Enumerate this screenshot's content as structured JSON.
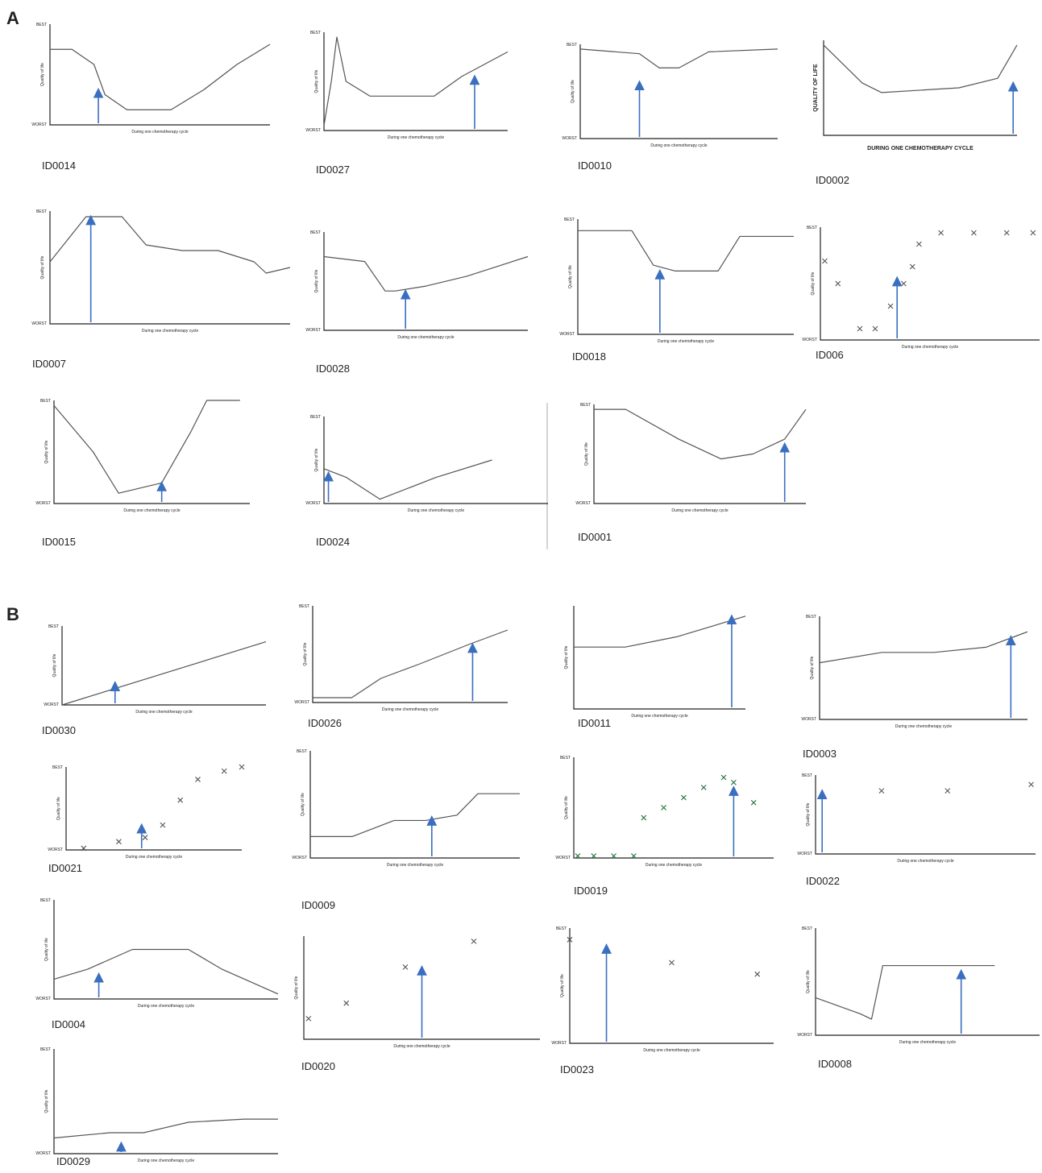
{
  "panels": [
    {
      "letter": "A",
      "sketches": [
        {
          "id": "ID0014",
          "y_label": "Quality of life",
          "x_label": "During one chemotherapy cycle",
          "best": "BEST",
          "worst": "WORST"
        },
        {
          "id": "ID0027",
          "y_label": "Quality of life",
          "x_label": "During one chemotherapy cycle",
          "best": "BEST",
          "worst": "WORST"
        },
        {
          "id": "ID0010",
          "y_label": "Quality of life",
          "x_label": "During one chemotherapy cycle",
          "best": "BEST",
          "worst": "WORST"
        },
        {
          "id": "ID0002",
          "y_label": "QUALITY OF LIFE",
          "x_label": "DURING ONE CHEMOTHERAPY CYCLE"
        },
        {
          "id": "ID0007",
          "y_label": "Quality of life",
          "x_label": "During one chemotherapy cycle",
          "best": "BEST",
          "worst": "WORST"
        },
        {
          "id": "ID0028",
          "y_label": "Quality of life",
          "x_label": "During one chemotherapy cycle",
          "best": "BEST",
          "worst": "WORST"
        },
        {
          "id": "ID0018",
          "y_label": "Quality of life",
          "x_label": "During one chemotherapy cycle",
          "best": "BEST",
          "worst": "WORST"
        },
        {
          "id": "ID006",
          "y_label": "Quality of life",
          "x_label": "During one chemotherapy cycle",
          "best": "BEST",
          "worst": "WORST"
        },
        {
          "id": "ID0015",
          "y_label": "Quality of life",
          "x_label": "During one chemotherapy cycle",
          "best": "BEST",
          "worst": "WORST"
        },
        {
          "id": "ID0024",
          "y_label": "Quality of life",
          "x_label": "During one chemotherapy cycle",
          "best": "BEST",
          "worst": "WORST"
        },
        {
          "id": "ID0001",
          "y_label": "Quality of life",
          "x_label": "During one chemotherapy cycle",
          "best": "BEST",
          "worst": "WORST"
        }
      ]
    },
    {
      "letter": "B",
      "sketches": [
        {
          "id": "ID0030",
          "y_label": "Quality of life",
          "x_label": "During one chemotherapy cycle",
          "best": "BEST",
          "worst": "WORST"
        },
        {
          "id": "ID0026",
          "y_label": "Quality of life",
          "x_label": "During one chemotherapy cycle",
          "best": "BEST",
          "worst": "WORST"
        },
        {
          "id": "ID0011",
          "y_label": "Quality of life",
          "x_label": "During one chemotherapy cycle"
        },
        {
          "id": "ID0003",
          "y_label": "Quality of life",
          "x_label": "During one chemotherapy cycle",
          "best": "BEST",
          "worst": "WORST"
        },
        {
          "id": "ID0021",
          "y_label": "Quality of life",
          "x_label": "During one chemotherapy cycle",
          "best": "BEST",
          "worst": "WORST"
        },
        {
          "id": "ID0009",
          "y_label": "Quality of life",
          "x_label": "During one chemotherapy cycle",
          "best": "BEST",
          "worst": "WORST"
        },
        {
          "id": "ID0019",
          "y_label": "Quality of life",
          "x_label": "During one chemotherapy cycle",
          "best": "BEST",
          "worst": "WORST"
        },
        {
          "id": "ID0022",
          "y_label": "Quality of life",
          "x_label": "During one chemotherapy cycle",
          "best": "BEST",
          "worst": "WORST"
        },
        {
          "id": "ID0004",
          "y_label": "Quality of life",
          "x_label": "During one chemotherapy cycle",
          "best": "BEST",
          "worst": "WORST"
        },
        {
          "id": "ID0020",
          "y_label": "Quality of life",
          "x_label": "During one chemotherapy cycle"
        },
        {
          "id": "ID0023",
          "y_label": "Quality of life",
          "x_label": "During one chemotherapy cycle",
          "best": "BEST",
          "worst": "WORST"
        },
        {
          "id": "ID0008",
          "y_label": "Quality of life",
          "x_label": "During one chemotherapy cycle",
          "best": "BEST",
          "worst": "WORST"
        },
        {
          "id": "ID0029",
          "y_label": "Quality of life",
          "x_label": "During one chemotherapy cycle",
          "best": "BEST",
          "worst": "WORST"
        }
      ]
    }
  ]
}
